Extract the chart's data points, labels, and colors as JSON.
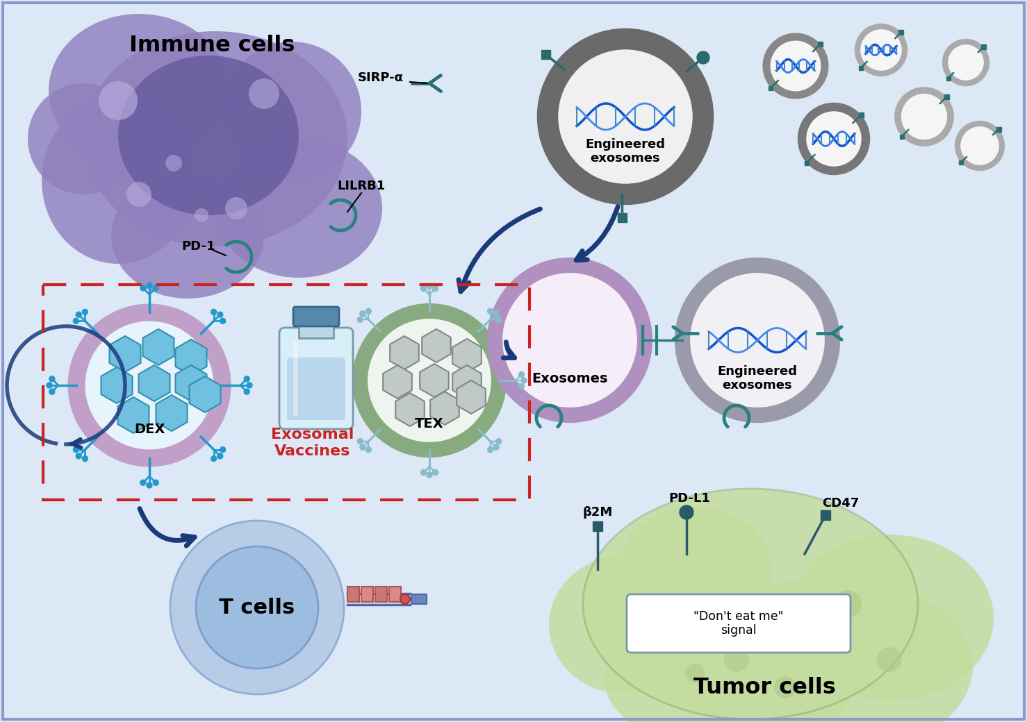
{
  "background_color": "#dce8f5",
  "immune_cell_body_color": "#9080be",
  "immune_cell_nucleus_color": "#7065aa",
  "immune_cell_label": "Immune cells",
  "t_cell_outer_color": "#b0cce8",
  "t_cell_inner_color": "#90b4d8",
  "t_cell_label": "T cells",
  "tumor_cell_color": "#c5dca0",
  "tumor_cell_edge_color": "#88aa66",
  "tumor_cell_label": "Tumor cells",
  "dex_label": "DEX",
  "tex_label": "TEX",
  "exosomal_vaccines_label": "Exosomal\nVaccines",
  "eng_exo_label1": "Engineered\nexosomes",
  "exosomes_label": "Exosomes",
  "eng_exo_label2": "Engineered\nexosomes",
  "pd1_label": "PD-1",
  "lilrb1_label": "LILRB1",
  "sirpa_label": "SIRP-α",
  "b2m_label": "β2M",
  "pdl1_label": "PD-L1",
  "cd47_label": "CD47",
  "dont_eat_label": "\"Don't eat me\"\nsignal",
  "teal_color": "#2a8080",
  "dark_teal": "#1a5f5f",
  "navy": "#2a4a7a",
  "blue_arrow_color": "#2255aa",
  "red_dashed_color": "#cc2222",
  "dex_ring_color": "#c0a0c8",
  "tex_ring_color": "#88aa80",
  "eng_exo_ring_color1": "#7a7a7a",
  "plain_exo_ring_color": "#b090c0",
  "eng_exo_ring_color2": "#9a9aaa",
  "hex_blue_face": "#70c0e0",
  "hex_blue_edge": "#3090b0",
  "hex_gray_face": "#c0c8c8",
  "hex_gray_edge": "#808888",
  "dna_color1": "#1155cc",
  "dna_color2": "#3377ee",
  "receptor_teal": "#2a8080",
  "vial_body_color": "#c8e8f5",
  "vial_cap_color": "#5588aa",
  "branch_blue": "#3399cc"
}
